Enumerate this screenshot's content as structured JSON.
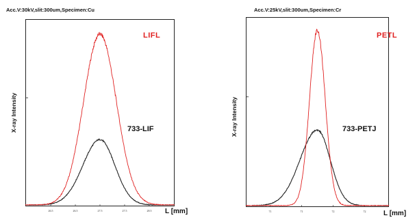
{
  "chart_data": [
    {
      "type": "line",
      "title": "Acc.V:30kV,slit:300um,Specimen:Cu",
      "xlabel": "L [mm]",
      "ylabel": "X-ray Intensity",
      "x_ticks": [
        "26.5",
        "26.5",
        "27.5",
        "27.5",
        "28.5"
      ],
      "series": [
        {
          "name": "LIFL",
          "color": "#e02020",
          "center": 0.5,
          "width": 0.11,
          "peak": 0.94
        },
        {
          "name": "733-LIF",
          "color": "#222222",
          "center": 0.5,
          "width": 0.1,
          "peak": 0.36
        }
      ]
    },
    {
      "type": "line",
      "title": "Acc.V:25kV,slit:300um,Specimen:Cr",
      "xlabel": "L [mm]",
      "ylabel": "X-ray Intensity",
      "x_ticks": [
        "71",
        "71",
        "72",
        "72"
      ],
      "series": [
        {
          "name": "PETL",
          "color": "#e02020",
          "center": 0.5,
          "width": 0.055,
          "peak": 0.95
        },
        {
          "name": "733-PETJ",
          "color": "#222222",
          "center": 0.5,
          "width": 0.09,
          "peak": 0.41
        }
      ]
    }
  ]
}
